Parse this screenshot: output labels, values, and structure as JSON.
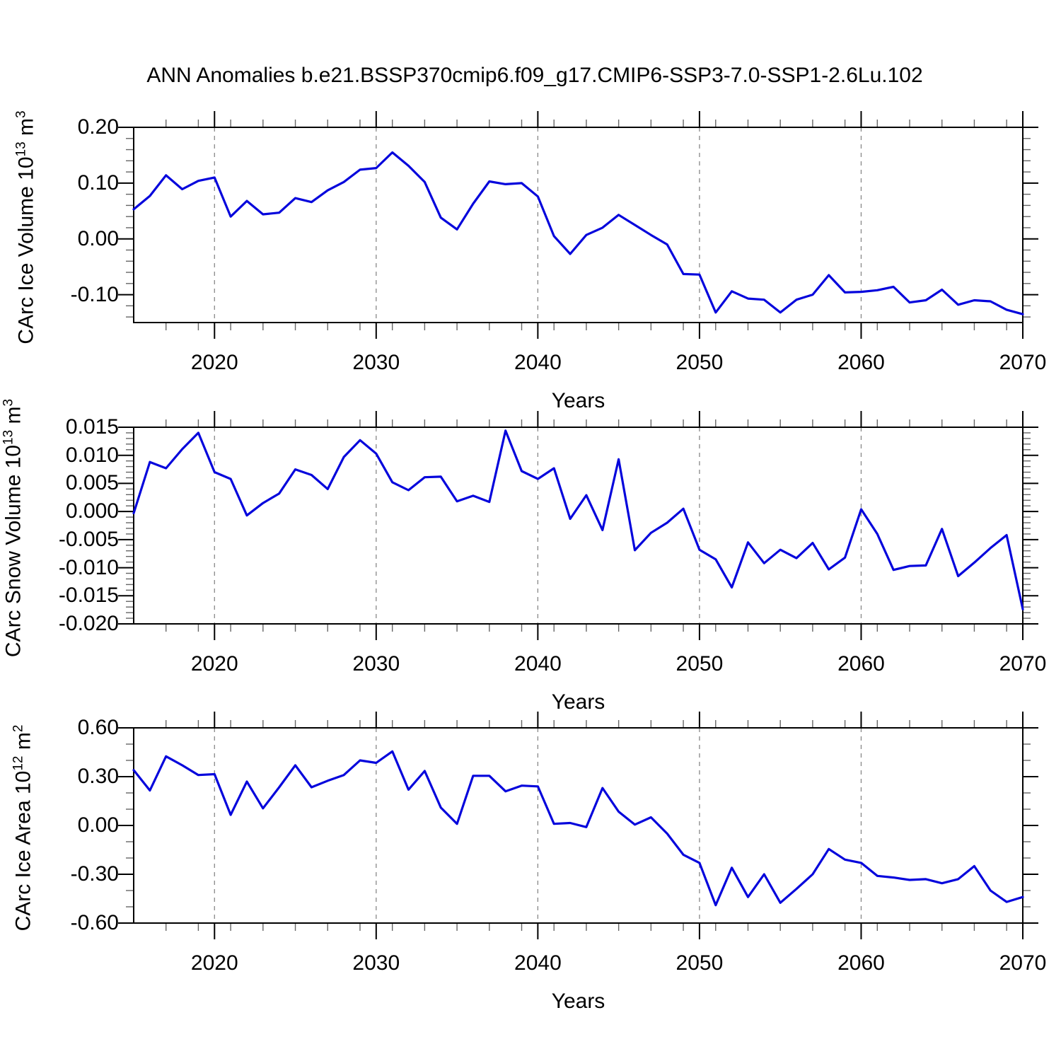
{
  "title": "ANN Anomalies b.e21.BSSP370cmip6.f09_g17.CMIP6-SSP3-7.0-SSP1-2.6Lu.102",
  "line_color": "#0505dc",
  "grid_color": "#888888",
  "x_axis": {
    "label": "Years",
    "start_year": 2015,
    "end_year": 2070,
    "major_tick_years": [
      2020,
      2030,
      2040,
      2050,
      2060,
      2070
    ],
    "major_tick_labels": [
      "2020",
      "2030",
      "2040",
      "2050",
      "2060",
      "2070"
    ],
    "minor_tick_step_years": 2,
    "dashed_gridline_years": [
      2020,
      2030,
      2040,
      2050,
      2060
    ]
  },
  "chart_data": [
    {
      "type": "line",
      "ylabel_main": "CArc Ice Volume 10",
      "ylabel_exp": "13",
      "ylabel_unit": " m",
      "ylabel_unit_exp": "3",
      "ylim": [
        -0.15,
        0.2
      ],
      "ytick_values": [
        0.2,
        0.1,
        0.0,
        -0.1
      ],
      "ytick_labels": [
        "0.20",
        "0.10",
        "0.00",
        "-0.10"
      ],
      "yminor_step": 0.02,
      "x": [
        2015,
        2016,
        2017,
        2018,
        2019,
        2020,
        2021,
        2022,
        2023,
        2024,
        2025,
        2026,
        2027,
        2028,
        2029,
        2030,
        2031,
        2032,
        2033,
        2034,
        2035,
        2036,
        2037,
        2038,
        2039,
        2040,
        2041,
        2042,
        2043,
        2044,
        2045,
        2046,
        2047,
        2048,
        2049,
        2050,
        2051,
        2052,
        2053,
        2054,
        2055,
        2056,
        2057,
        2058,
        2059,
        2060,
        2061,
        2062,
        2063,
        2064,
        2065,
        2066,
        2067,
        2068,
        2069,
        2070
      ],
      "values": [
        0.053,
        0.077,
        0.114,
        0.089,
        0.104,
        0.11,
        0.04,
        0.068,
        0.044,
        0.047,
        0.073,
        0.066,
        0.087,
        0.102,
        0.124,
        0.127,
        0.155,
        0.131,
        0.102,
        0.038,
        0.017,
        0.063,
        0.103,
        0.098,
        0.1,
        0.076,
        0.005,
        -0.027,
        0.007,
        0.02,
        0.043,
        0.025,
        0.007,
        -0.01,
        -0.063,
        -0.064,
        -0.132,
        -0.094,
        -0.107,
        -0.109,
        -0.132,
        -0.109,
        -0.1,
        -0.065,
        -0.096,
        -0.095,
        -0.092,
        -0.086,
        -0.114,
        -0.11,
        -0.091,
        -0.118,
        -0.11,
        -0.112,
        -0.127,
        -0.135
      ]
    },
    {
      "type": "line",
      "ylabel_main": "CArc Snow Volume 10",
      "ylabel_exp": "13",
      "ylabel_unit": " m",
      "ylabel_unit_exp": "3",
      "ylim": [
        -0.02,
        0.015
      ],
      "ytick_values": [
        0.015,
        0.01,
        0.005,
        0.0,
        -0.005,
        -0.01,
        -0.015,
        -0.02
      ],
      "ytick_labels": [
        "0.015",
        "0.010",
        "0.005",
        "0.000",
        "-0.005",
        "-0.010",
        "-0.015",
        "-0.020"
      ],
      "yminor_step": 0.001,
      "x": [
        2015,
        2016,
        2017,
        2018,
        2019,
        2020,
        2021,
        2022,
        2023,
        2024,
        2025,
        2026,
        2027,
        2028,
        2029,
        2030,
        2031,
        2032,
        2033,
        2034,
        2035,
        2036,
        2037,
        2038,
        2039,
        2040,
        2041,
        2042,
        2043,
        2044,
        2045,
        2046,
        2047,
        2048,
        2049,
        2050,
        2051,
        2052,
        2053,
        2054,
        2055,
        2056,
        2057,
        2058,
        2059,
        2060,
        2061,
        2062,
        2063,
        2064,
        2065,
        2066,
        2067,
        2068,
        2069,
        2070
      ],
      "values": [
        -0.0003,
        0.0088,
        0.0077,
        0.0111,
        0.014,
        0.007,
        0.0058,
        -0.0007,
        0.0015,
        0.0032,
        0.0075,
        0.0065,
        0.004,
        0.0097,
        0.0127,
        0.0103,
        0.0052,
        0.0038,
        0.0061,
        0.0062,
        0.0018,
        0.0028,
        0.0017,
        0.0144,
        0.0072,
        0.0058,
        0.0077,
        -0.0013,
        0.0029,
        -0.0033,
        0.0093,
        -0.0069,
        -0.0038,
        -0.002,
        0.0005,
        -0.0068,
        -0.0085,
        -0.0135,
        -0.0055,
        -0.0092,
        -0.0068,
        -0.0083,
        -0.0056,
        -0.0103,
        -0.0082,
        0.0004,
        -0.004,
        -0.0104,
        -0.0097,
        -0.0096,
        -0.0031,
        -0.0115,
        -0.0091,
        -0.0065,
        -0.0042,
        -0.0174
      ]
    },
    {
      "type": "line",
      "ylabel_main": "CArc Ice Area 10",
      "ylabel_exp": "12",
      "ylabel_unit": " m",
      "ylabel_unit_exp": "2",
      "ylim": [
        -0.6,
        0.6
      ],
      "ytick_values": [
        0.6,
        0.3,
        0.0,
        -0.3,
        -0.6
      ],
      "ytick_labels": [
        "0.60",
        "0.30",
        "0.00",
        "-0.30",
        "-0.60"
      ],
      "yminor_step": 0.1,
      "x": [
        2015,
        2016,
        2017,
        2018,
        2019,
        2020,
        2021,
        2022,
        2023,
        2024,
        2025,
        2026,
        2027,
        2028,
        2029,
        2030,
        2031,
        2032,
        2033,
        2034,
        2035,
        2036,
        2037,
        2038,
        2039,
        2040,
        2041,
        2042,
        2043,
        2044,
        2045,
        2046,
        2047,
        2048,
        2049,
        2050,
        2051,
        2052,
        2053,
        2054,
        2055,
        2056,
        2057,
        2058,
        2059,
        2060,
        2061,
        2062,
        2063,
        2064,
        2065,
        2066,
        2067,
        2068,
        2069,
        2070
      ],
      "values": [
        0.34,
        0.215,
        0.425,
        0.37,
        0.31,
        0.315,
        0.065,
        0.27,
        0.105,
        0.235,
        0.37,
        0.235,
        0.275,
        0.31,
        0.4,
        0.385,
        0.455,
        0.22,
        0.335,
        0.11,
        0.01,
        0.305,
        0.305,
        0.21,
        0.245,
        0.24,
        0.01,
        0.015,
        -0.01,
        0.23,
        0.085,
        0.005,
        0.05,
        -0.05,
        -0.18,
        -0.23,
        -0.49,
        -0.26,
        -0.44,
        -0.3,
        -0.475,
        -0.39,
        -0.3,
        -0.145,
        -0.21,
        -0.23,
        -0.31,
        -0.32,
        -0.335,
        -0.33,
        -0.355,
        -0.33,
        -0.25,
        -0.4,
        -0.47,
        -0.44
      ]
    }
  ]
}
